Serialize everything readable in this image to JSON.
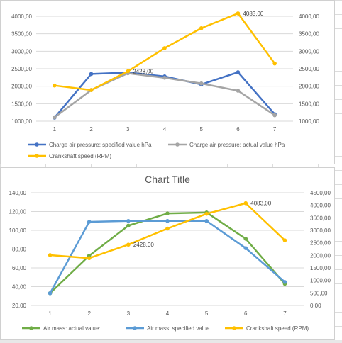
{
  "chart_data": [
    {
      "type": "line",
      "title": "",
      "categories": [
        "1",
        "2",
        "3",
        "4",
        "5",
        "6",
        "7"
      ],
      "y_left": {
        "ylim": [
          1000,
          4000
        ],
        "ticks": [
          "1000,00",
          "1500,00",
          "2000,00",
          "2500,00",
          "3000,00",
          "3500,00",
          "4000,00"
        ]
      },
      "y_right": {
        "ylim": [
          1000,
          4000
        ],
        "ticks": [
          "1000,00",
          "1500,00",
          "2000,00",
          "2500,00",
          "3000,00",
          "3500,00",
          "4000,00"
        ]
      },
      "grid": true,
      "legend_position": "bottom",
      "series": [
        {
          "name": "Charge air pressure: specified value  hPa",
          "axis": "left",
          "color": "#4472C4",
          "values": [
            1100,
            2350,
            2390,
            2280,
            2050,
            2400,
            1200
          ]
        },
        {
          "name": "Charge air pressure: actual value  hPa",
          "axis": "left",
          "color": "#A5A5A5",
          "values": [
            1110,
            1890,
            2370,
            2240,
            2080,
            1870,
            1170
          ]
        },
        {
          "name": "Crankshaft speed (RPM)",
          "axis": "right",
          "color": "#FFC000",
          "values": [
            2020,
            1890,
            2428,
            3090,
            3660,
            4083,
            2650
          ]
        }
      ],
      "annotations": [
        {
          "series": 2,
          "index": 2,
          "text": "2428,00"
        },
        {
          "series": 2,
          "index": 5,
          "text": "4083,00"
        }
      ]
    },
    {
      "type": "line",
      "title": "Chart Title",
      "categories": [
        "1",
        "2",
        "3",
        "4",
        "5",
        "6",
        "7"
      ],
      "y_left": {
        "ylim": [
          20,
          140
        ],
        "ticks": [
          "20,00",
          "40,00",
          "60,00",
          "80,00",
          "100,00",
          "120,00",
          "140,00"
        ]
      },
      "y_right": {
        "ylim": [
          0,
          4500
        ],
        "ticks": [
          "0,00",
          "500,00",
          "1000,00",
          "1500,00",
          "2000,00",
          "2500,00",
          "3000,00",
          "3500,00",
          "4000,00",
          "4500,00"
        ]
      },
      "grid": true,
      "legend_position": "bottom",
      "series": [
        {
          "name": "Air mass: actual value:",
          "axis": "left",
          "color": "#70AD47",
          "values": [
            33,
            73,
            105,
            118,
            119,
            91,
            43
          ]
        },
        {
          "name": "Air mass: specified value",
          "axis": "left",
          "color": "#5B9BD5",
          "values": [
            33,
            109,
            110,
            110,
            110,
            81,
            45
          ]
        },
        {
          "name": "Crankshaft speed (RPM)",
          "axis": "right",
          "color": "#FFC000",
          "values": [
            2010,
            1890,
            2428,
            3070,
            3660,
            4083,
            2600
          ]
        }
      ],
      "annotations": [
        {
          "series": 2,
          "index": 2,
          "text": "2428,00"
        },
        {
          "series": 2,
          "index": 5,
          "text": "4083,00"
        }
      ]
    }
  ]
}
